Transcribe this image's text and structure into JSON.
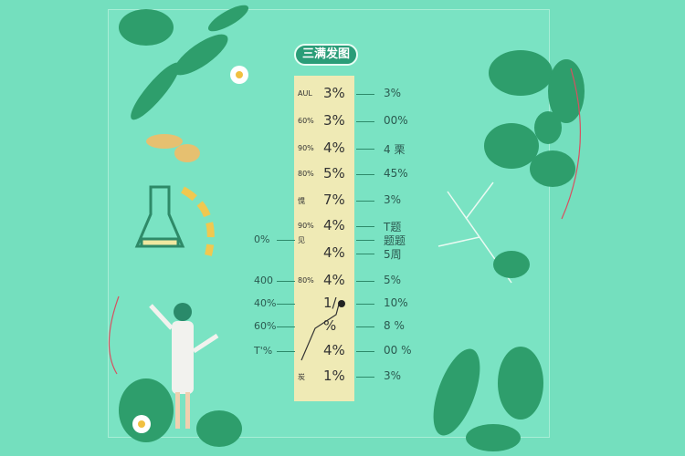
{
  "title": "三满发图",
  "rows": [
    {
      "label": "AUL",
      "value": "3%",
      "right": "3%",
      "left": ""
    },
    {
      "label": "60%",
      "value": "3%",
      "right": "00%",
      "left": ""
    },
    {
      "label": "90%",
      "value": "4%",
      "right": "4 栗",
      "left": ""
    },
    {
      "label": "80%",
      "value": "5%",
      "right": "45%",
      "left": ""
    },
    {
      "label": "愰",
      "value": "7%",
      "right": "3%",
      "left": ""
    },
    {
      "label": "90%",
      "value": "4%",
      "right": "T题",
      "left": ""
    },
    {
      "label": "见",
      "value": "",
      "right": "题题",
      "left": "0%"
    },
    {
      "label": "",
      "value": "4%",
      "right": "5周",
      "left": ""
    },
    {
      "label": "80%",
      "value": "4%",
      "right": "5%",
      "left": "400"
    },
    {
      "label": "",
      "value": "1/",
      "right": "10%",
      "left": "40%"
    },
    {
      "label": "",
      "value": "%",
      "right": "8 %",
      "left": "60%"
    },
    {
      "label": "",
      "value": "4%",
      "right": "00 %",
      "left": "T'%"
    },
    {
      "label": "炭",
      "value": "1%",
      "right": "3%",
      "left": ""
    }
  ],
  "colors": {
    "background": "#74dfbe",
    "column": "#efeab5",
    "title_pill": "#2a9d78",
    "leaf": "#2e9e6c"
  }
}
